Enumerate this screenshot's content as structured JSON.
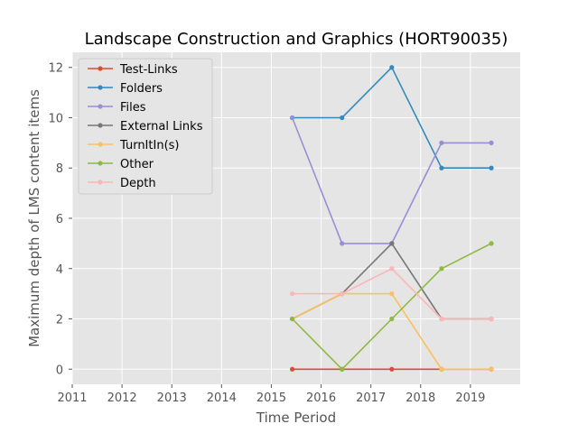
{
  "chart_data": {
    "type": "line",
    "title": "Landscape Construction and Graphics (HORT90035)",
    "xlabel": "Time Period",
    "ylabel": "Maximum depth of LMS content items",
    "xlim": [
      2011,
      2020
    ],
    "ylim": [
      -0.6,
      12.6
    ],
    "xticks": [
      2011,
      2012,
      2013,
      2014,
      2015,
      2016,
      2017,
      2018,
      2019
    ],
    "yticks": [
      0,
      2,
      4,
      6,
      8,
      10,
      12
    ],
    "grid": true,
    "legend_position": "top-left",
    "x": [
      2015.42,
      2016.42,
      2017.42,
      2018.42,
      2019.42
    ],
    "series": [
      {
        "name": "Test-Links",
        "color": "#E24A33",
        "values": [
          0,
          0,
          0,
          0,
          0
        ]
      },
      {
        "name": "Folders",
        "color": "#348ABD",
        "values": [
          10,
          10,
          12,
          8,
          8
        ]
      },
      {
        "name": "Files",
        "color": "#988ED5",
        "values": [
          10,
          5,
          5,
          9,
          9
        ]
      },
      {
        "name": "External Links",
        "color": "#777777",
        "values": [
          2,
          3,
          5,
          2,
          2
        ]
      },
      {
        "name": "TurnItIn(s)",
        "color": "#FBC15E",
        "values": [
          2,
          3,
          3,
          0,
          0
        ]
      },
      {
        "name": "Other",
        "color": "#8EBA42",
        "values": [
          2,
          0,
          2,
          4,
          5
        ]
      },
      {
        "name": "Depth",
        "color": "#FFB5B8",
        "values": [
          3,
          3,
          4,
          2,
          2
        ]
      }
    ]
  }
}
